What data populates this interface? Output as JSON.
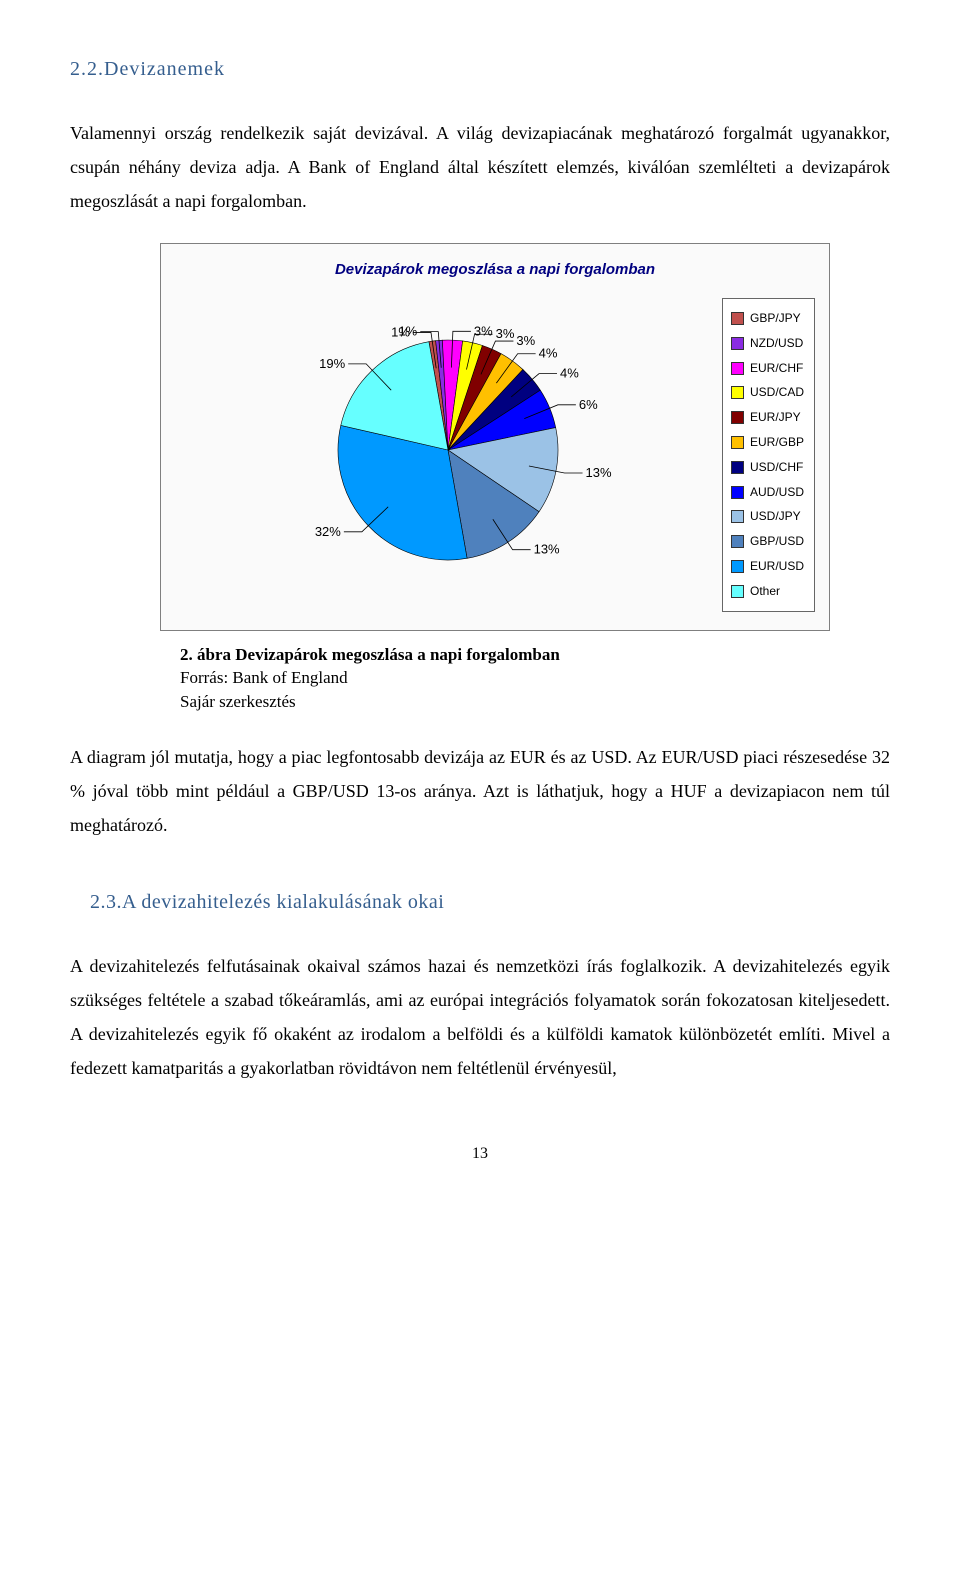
{
  "heading1": "2.2.Devizanemek",
  "para1": "Valamennyi ország rendelkezik saját devizával. A világ devizapiacának meghatározó forgalmát ugyanakkor, csupán néhány deviza adja. A Bank of England által készített elemzés, kiválóan szemlélteti a devizapárok megoszlását a napi forgalomban.",
  "chart": {
    "title": "Devizapárok megoszlása a napi forgalomban",
    "title_color": "#000080",
    "title_fontsize": 15,
    "background": "#fafafa",
    "border": "#7f7f7f",
    "radius": 110,
    "slices": [
      {
        "label": "GBP/JPY",
        "value": 1,
        "color": "#c0504d",
        "pct": "1%"
      },
      {
        "label": "NZD/USD",
        "value": 1,
        "color": "#8a2be2",
        "pct": "1%"
      },
      {
        "label": "EUR/CHF",
        "value": 3,
        "color": "#ff00ff",
        "pct": "3%"
      },
      {
        "label": "USD/CAD",
        "value": 3,
        "color": "#ffff00",
        "pct": "3%"
      },
      {
        "label": "EUR/JPY",
        "value": 3,
        "color": "#800000",
        "pct": "3%"
      },
      {
        "label": "EUR/GBP",
        "value": 4,
        "color": "#ffc000",
        "pct": "4%"
      },
      {
        "label": "USD/CHF",
        "value": 4,
        "color": "#000080",
        "pct": "4%"
      },
      {
        "label": "AUD/USD",
        "value": 6,
        "color": "#0000ff",
        "pct": "6%"
      },
      {
        "label": "USD/JPY",
        "value": 13,
        "color": "#9bc2e6",
        "pct": "13%"
      },
      {
        "label": "GBP/USD",
        "value": 13,
        "color": "#4f81bd",
        "pct": "13%"
      },
      {
        "label": "EUR/USD",
        "value": 32,
        "color": "#0099ff",
        "pct": "32%"
      },
      {
        "label": "Other",
        "value": 19,
        "color": "#66ffff",
        "pct": "19%"
      }
    ],
    "start_angle_deg": -100,
    "leader_color": "#000000",
    "label_fontsize": 13
  },
  "caption": {
    "line1": "2. ábra Devizapárok megoszlása a napi forgalomban",
    "line2": "Forrás: Bank of England",
    "line3": "Sajár szerkesztés"
  },
  "para2": "A diagram jól mutatja, hogy a piac legfontosabb devizája az EUR és az USD. Az EUR/USD  piaci részesedése 32 % jóval több mint például a GBP/USD 13-os aránya. Azt is láthatjuk, hogy a HUF a devizapiacon nem túl meghatározó.",
  "heading2": "2.3.A devizahitelezés kialakulásának okai",
  "para3": "A devizahitelezés felfutásainak okaival számos hazai és nemzetközi írás foglalkozik. A devizahitelezés egyik szükséges feltétele a szabad tőkeáramlás, ami az európai integrációs folyamatok során fokozatosan kiteljesedett. A devizahitelezés egyik fő okaként az irodalom a belföldi és a külföldi kamatok különbözetét említi. Mivel a fedezett kamatparitás a gyakorlatban rövidtávon nem feltétlenül érvényesül,",
  "page_number": "13"
}
